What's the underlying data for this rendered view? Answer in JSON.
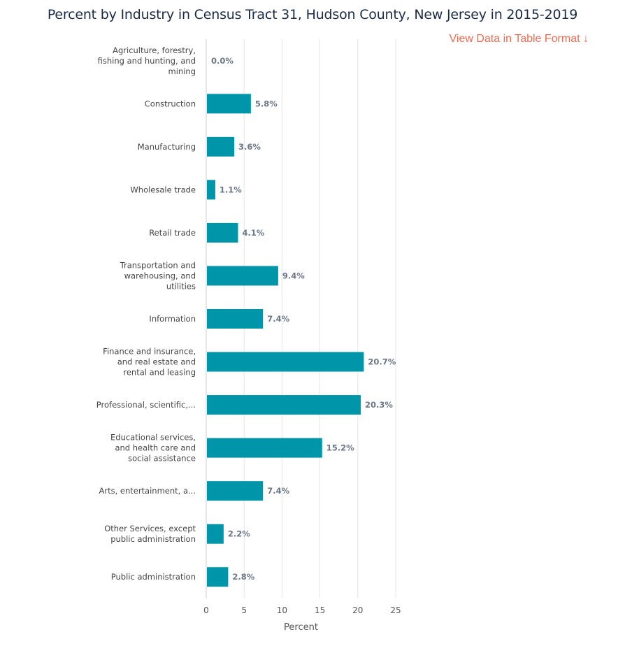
{
  "header": {
    "title": "Percent by Industry in Census Tract 31, Hudson County, New Jersey in 2015-2019",
    "table_link": "View Data in Table Format ↓"
  },
  "colors": {
    "bar": "#0095a8",
    "link": "#f06b50",
    "title": "#1b2a44"
  },
  "chart_data": {
    "type": "bar",
    "orientation": "horizontal",
    "title": "Percent by Industry in Census Tract 31, Hudson County, New Jersey in 2015-2019",
    "xlabel": "Percent",
    "ylabel": "",
    "xlim": [
      0,
      25
    ],
    "xticks": [
      0,
      5,
      10,
      15,
      20,
      25
    ],
    "grid": "vertical",
    "legend": "none",
    "categories": [
      [
        "Agriculture, forestry,",
        "fishing and hunting, and",
        "mining"
      ],
      [
        "Construction"
      ],
      [
        "Manufacturing"
      ],
      [
        "Wholesale trade"
      ],
      [
        "Retail trade"
      ],
      [
        "Transportation and",
        "warehousing, and",
        "utilities"
      ],
      [
        "Information"
      ],
      [
        "Finance and insurance,",
        "and real estate and",
        "rental and leasing"
      ],
      [
        "Professional, scientific,..."
      ],
      [
        "Educational services,",
        "and health care and",
        "social assistance"
      ],
      [
        "Arts, entertainment, a..."
      ],
      [
        "Other Services, except",
        "public administration"
      ],
      [
        "Public administration"
      ]
    ],
    "values": [
      0.0,
      5.8,
      3.6,
      1.1,
      4.1,
      9.4,
      7.4,
      20.7,
      20.3,
      15.2,
      7.4,
      2.2,
      2.8
    ],
    "value_labels": [
      "0.0%",
      "5.8%",
      "3.6%",
      "1.1%",
      "4.1%",
      "9.4%",
      "7.4%",
      "20.7%",
      "20.3%",
      "15.2%",
      "7.4%",
      "2.2%",
      "2.8%"
    ]
  }
}
